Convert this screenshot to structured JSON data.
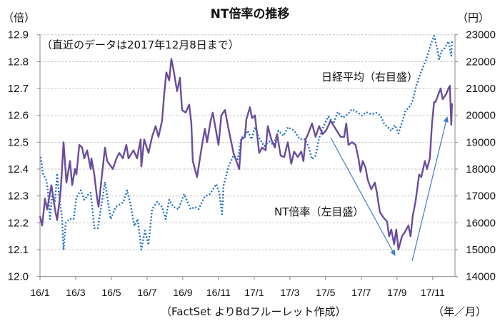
{
  "chart_data": {
    "type": "line",
    "title": "NT倍率の推移",
    "note": "（直近のデータは2017年12月8日まで）",
    "ylabel_left": "（倍）",
    "ylabel_right": "（円）",
    "xlabel": "（年／月）",
    "source": "（FactSet よりBdフルーレット作成）",
    "x_unit": "months since 2016/1",
    "xlim": [
      0,
      23.25
    ],
    "ylim_left": [
      12.0,
      12.9
    ],
    "ylim_right": [
      14000,
      23000
    ],
    "yticks_left": [
      "12.0",
      "12.1",
      "12.2",
      "12.3",
      "12.4",
      "12.5",
      "12.6",
      "12.7",
      "12.8",
      "12.9"
    ],
    "yticks_right": [
      "14000",
      "15000",
      "16000",
      "17000",
      "18000",
      "19000",
      "20000",
      "21000",
      "22000",
      "23000"
    ],
    "xticks": [
      "16/1",
      "16/3",
      "16/5",
      "16/7",
      "16/9",
      "16/11",
      "17/1",
      "17/3",
      "17/5",
      "17/7",
      "17/9",
      "17/11"
    ],
    "grid": true,
    "series": [
      {
        "name": "NT倍率（左目盛）",
        "axis": "left",
        "color": "#6a4c9c",
        "style": "solid",
        "points": [
          [
            0,
            12.225
          ],
          [
            0.12,
            12.19
          ],
          [
            0.28,
            12.29
          ],
          [
            0.4,
            12.25
          ],
          [
            0.64,
            12.34
          ],
          [
            0.84,
            12.25
          ],
          [
            0.96,
            12.21
          ],
          [
            1.16,
            12.32
          ],
          [
            1.32,
            12.5
          ],
          [
            1.48,
            12.35
          ],
          [
            1.68,
            12.43
          ],
          [
            1.8,
            12.34
          ],
          [
            1.96,
            12.4
          ],
          [
            2.04,
            12.38
          ],
          [
            2.2,
            12.49
          ],
          [
            2.36,
            12.48
          ],
          [
            2.48,
            12.44
          ],
          [
            2.64,
            12.47
          ],
          [
            2.84,
            12.4
          ],
          [
            2.88,
            12.44
          ],
          [
            3.04,
            12.38
          ],
          [
            3.2,
            12.29
          ],
          [
            3.28,
            12.26
          ],
          [
            3.44,
            12.36
          ],
          [
            3.64,
            12.48
          ],
          [
            3.76,
            12.43
          ],
          [
            4.08,
            12.4
          ],
          [
            4.28,
            12.44
          ],
          [
            4.44,
            12.46
          ],
          [
            4.64,
            12.44
          ],
          [
            4.84,
            12.49
          ],
          [
            4.96,
            12.44
          ],
          [
            5.24,
            12.47
          ],
          [
            5.44,
            12.44
          ],
          [
            5.64,
            12.51
          ],
          [
            5.68,
            12.41
          ],
          [
            5.84,
            12.51
          ],
          [
            6.08,
            12.46
          ],
          [
            6.28,
            12.52
          ],
          [
            6.48,
            12.56
          ],
          [
            6.64,
            12.52
          ],
          [
            6.84,
            12.58
          ],
          [
            6.96,
            12.68
          ],
          [
            7.08,
            12.76
          ],
          [
            7.24,
            12.73
          ],
          [
            7.36,
            12.81
          ],
          [
            7.48,
            12.77
          ],
          [
            7.68,
            12.69
          ],
          [
            7.84,
            12.74
          ],
          [
            7.96,
            12.62
          ],
          [
            8.16,
            12.61
          ],
          [
            8.36,
            12.64
          ],
          [
            8.48,
            12.57
          ],
          [
            8.56,
            12.43
          ],
          [
            8.8,
            12.37
          ],
          [
            8.96,
            12.44
          ],
          [
            9.08,
            12.49
          ],
          [
            9.24,
            12.55
          ],
          [
            9.36,
            12.5
          ],
          [
            9.56,
            12.58
          ],
          [
            9.68,
            12.61
          ],
          [
            9.84,
            12.55
          ],
          [
            10.0,
            12.49
          ],
          [
            10.16,
            12.6
          ],
          [
            10.36,
            12.62
          ],
          [
            10.56,
            12.55
          ],
          [
            10.84,
            12.46
          ],
          [
            11.16,
            12.4
          ],
          [
            11.28,
            12.51
          ],
          [
            11.48,
            12.52
          ],
          [
            11.56,
            12.585
          ],
          [
            11.76,
            12.63
          ],
          [
            11.88,
            12.59
          ],
          [
            12.04,
            12.6
          ],
          [
            12.28,
            12.46
          ],
          [
            12.44,
            12.48
          ],
          [
            12.64,
            12.47
          ],
          [
            12.76,
            12.56
          ],
          [
            12.96,
            12.51
          ],
          [
            13.16,
            12.48
          ],
          [
            13.28,
            12.53
          ],
          [
            13.48,
            12.45
          ],
          [
            13.68,
            12.445
          ],
          [
            13.88,
            12.5
          ],
          [
            14.08,
            12.42
          ],
          [
            14.24,
            12.465
          ],
          [
            14.44,
            12.445
          ],
          [
            14.64,
            12.465
          ],
          [
            14.76,
            12.43
          ],
          [
            14.88,
            12.51
          ],
          [
            15.08,
            12.54
          ],
          [
            15.24,
            12.57
          ],
          [
            15.44,
            12.52
          ],
          [
            15.64,
            12.56
          ],
          [
            15.84,
            12.53
          ],
          [
            16.04,
            12.545
          ],
          [
            16.28,
            12.58
          ],
          [
            16.56,
            12.55
          ],
          [
            16.84,
            12.52
          ],
          [
            17.04,
            12.52
          ],
          [
            17.16,
            12.57
          ],
          [
            17.28,
            12.49
          ],
          [
            17.48,
            12.5
          ],
          [
            17.68,
            12.49
          ],
          [
            17.84,
            12.44
          ],
          [
            17.96,
            12.39
          ],
          [
            18.08,
            12.43
          ],
          [
            18.24,
            12.405
          ],
          [
            18.36,
            12.36
          ],
          [
            18.56,
            12.325
          ],
          [
            18.76,
            12.35
          ],
          [
            18.88,
            12.31
          ],
          [
            19.04,
            12.24
          ],
          [
            19.24,
            12.22
          ],
          [
            19.44,
            12.205
          ],
          [
            19.56,
            12.15
          ],
          [
            19.68,
            12.175
          ],
          [
            19.84,
            12.12
          ],
          [
            19.96,
            12.175
          ],
          [
            20.08,
            12.1
          ],
          [
            20.28,
            12.15
          ],
          [
            20.48,
            12.17
          ],
          [
            20.64,
            12.19
          ],
          [
            20.76,
            12.15
          ],
          [
            20.88,
            12.225
          ],
          [
            21.04,
            12.28
          ],
          [
            21.24,
            12.38
          ],
          [
            21.36,
            12.37
          ],
          [
            21.56,
            12.43
          ],
          [
            21.68,
            12.4
          ],
          [
            21.84,
            12.44
          ],
          [
            21.96,
            12.57
          ],
          [
            22.08,
            12.65
          ],
          [
            22.16,
            12.65
          ],
          [
            22.44,
            12.7
          ],
          [
            22.56,
            12.66
          ],
          [
            22.76,
            12.68
          ],
          [
            22.88,
            12.7
          ],
          [
            22.96,
            12.71
          ],
          [
            23.04,
            12.565
          ],
          [
            23.08,
            12.645
          ]
        ]
      },
      {
        "name": "日経平均（右目盛）",
        "axis": "right",
        "color": "#1f6fc8",
        "style": "dotted",
        "points": [
          [
            0.04,
            18450
          ],
          [
            0.16,
            17840
          ],
          [
            0.36,
            17570
          ],
          [
            0.44,
            17210
          ],
          [
            0.56,
            16140
          ],
          [
            0.68,
            17040
          ],
          [
            0.84,
            16780
          ],
          [
            0.96,
            17840
          ],
          [
            1.08,
            16940
          ],
          [
            1.24,
            16140
          ],
          [
            1.32,
            15000
          ],
          [
            1.44,
            16000
          ],
          [
            1.64,
            16140
          ],
          [
            1.88,
            16140
          ],
          [
            2.04,
            16940
          ],
          [
            2.28,
            17210
          ],
          [
            2.48,
            16860
          ],
          [
            2.68,
            17040
          ],
          [
            2.84,
            17120
          ],
          [
            3.04,
            15800
          ],
          [
            3.24,
            15800
          ],
          [
            3.44,
            16670
          ],
          [
            3.64,
            17520
          ],
          [
            3.96,
            16140
          ],
          [
            4.24,
            16590
          ],
          [
            4.44,
            16670
          ],
          [
            4.68,
            16780
          ],
          [
            4.88,
            17210
          ],
          [
            5.08,
            16670
          ],
          [
            5.28,
            15880
          ],
          [
            5.48,
            16140
          ],
          [
            5.68,
            15000
          ],
          [
            5.88,
            15710
          ],
          [
            6.08,
            15180
          ],
          [
            6.28,
            16510
          ],
          [
            6.56,
            16780
          ],
          [
            6.84,
            16590
          ],
          [
            7.04,
            16140
          ],
          [
            7.24,
            16860
          ],
          [
            7.48,
            16590
          ],
          [
            7.76,
            16510
          ],
          [
            8.08,
            17070
          ],
          [
            8.44,
            16510
          ],
          [
            8.68,
            16590
          ],
          [
            8.88,
            16510
          ],
          [
            9.24,
            16990
          ],
          [
            9.48,
            17040
          ],
          [
            9.88,
            17440
          ],
          [
            10.04,
            17120
          ],
          [
            10.2,
            16320
          ],
          [
            10.28,
            17380
          ],
          [
            10.56,
            18100
          ],
          [
            10.84,
            18500
          ],
          [
            11.08,
            18370
          ],
          [
            11.28,
            19160
          ],
          [
            11.44,
            19240
          ],
          [
            11.64,
            19430
          ],
          [
            11.84,
            19110
          ],
          [
            12.04,
            19560
          ],
          [
            12.28,
            19160
          ],
          [
            12.56,
            18850
          ],
          [
            12.84,
            19030
          ],
          [
            13.08,
            18900
          ],
          [
            13.36,
            19430
          ],
          [
            13.64,
            19240
          ],
          [
            13.88,
            19560
          ],
          [
            14.24,
            19430
          ],
          [
            14.56,
            19110
          ],
          [
            14.84,
            19110
          ],
          [
            15.04,
            18850
          ],
          [
            15.24,
            18370
          ],
          [
            15.44,
            18500
          ],
          [
            15.64,
            19160
          ],
          [
            15.88,
            19590
          ],
          [
            16.16,
            19960
          ],
          [
            16.44,
            19690
          ],
          [
            16.68,
            20120
          ],
          [
            16.96,
            19910
          ],
          [
            17.24,
            20040
          ],
          [
            17.48,
            20230
          ],
          [
            17.76,
            20120
          ],
          [
            18.04,
            19990
          ],
          [
            18.28,
            20120
          ],
          [
            18.56,
            20040
          ],
          [
            18.84,
            20090
          ],
          [
            19.08,
            19990
          ],
          [
            19.28,
            19690
          ],
          [
            19.48,
            19560
          ],
          [
            19.68,
            19430
          ],
          [
            19.88,
            19640
          ],
          [
            20.08,
            19330
          ],
          [
            20.28,
            19730
          ],
          [
            20.48,
            20180
          ],
          [
            20.76,
            20360
          ],
          [
            20.88,
            20570
          ],
          [
            21.08,
            21110
          ],
          [
            21.36,
            21640
          ],
          [
            21.64,
            22090
          ],
          [
            21.88,
            22620
          ],
          [
            22.08,
            22960
          ],
          [
            22.24,
            22510
          ],
          [
            22.36,
            22090
          ],
          [
            22.48,
            22380
          ],
          [
            22.68,
            22510
          ],
          [
            22.88,
            22750
          ],
          [
            23.04,
            22220
          ],
          [
            23.08,
            22750
          ]
        ]
      }
    ],
    "annotations": {
      "nikkei_label": "日経平均（右目盛）",
      "nt_label": "NT倍率（左目盛）"
    }
  }
}
